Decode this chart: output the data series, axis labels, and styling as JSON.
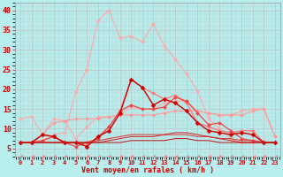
{
  "background_color": "#b8eeee",
  "grid_color": "#bbbbbb",
  "xlabel": "Vent moyen/en rafales ( km/h )",
  "xlim": [
    -0.5,
    23.5
  ],
  "ylim": [
    3,
    42
  ],
  "yticks": [
    5,
    10,
    15,
    20,
    25,
    30,
    35,
    40
  ],
  "xticks": [
    0,
    1,
    2,
    3,
    4,
    5,
    6,
    7,
    8,
    9,
    10,
    11,
    12,
    13,
    14,
    15,
    16,
    17,
    18,
    19,
    20,
    21,
    22,
    23
  ],
  "lines": [
    {
      "x": [
        0,
        1,
        2,
        3,
        4,
        5,
        6,
        7,
        8,
        9,
        10,
        11,
        12,
        13,
        14,
        15,
        16,
        17,
        18,
        19,
        20,
        21,
        22,
        23
      ],
      "y": [
        6.5,
        6.5,
        7.0,
        8.5,
        9.0,
        19.5,
        25.0,
        37.5,
        40.0,
        33.0,
        33.5,
        32.0,
        36.5,
        31.0,
        27.5,
        24.0,
        19.5,
        12.5,
        10.0,
        7.5,
        6.5,
        6.5,
        6.5,
        6.5
      ],
      "color": "#ffaaaa",
      "lw": 0.8,
      "marker": "D",
      "ms": 2.0,
      "ls": "-"
    },
    {
      "x": [
        0,
        1,
        2,
        3,
        4,
        5,
        6,
        7,
        8,
        9,
        10,
        11,
        12,
        13,
        14,
        15,
        16,
        17,
        18,
        19,
        20,
        21,
        22,
        23
      ],
      "y": [
        12.5,
        13.0,
        8.5,
        12.5,
        12.0,
        7.5,
        10.5,
        13.0,
        13.0,
        13.5,
        15.5,
        15.0,
        15.0,
        16.5,
        17.0,
        17.0,
        14.5,
        14.0,
        13.5,
        13.5,
        14.5,
        15.0,
        15.0,
        8.0
      ],
      "color": "#ffaaaa",
      "lw": 0.8,
      "marker": "D",
      "ms": 2.0,
      "ls": "-"
    },
    {
      "x": [
        0,
        1,
        2,
        3,
        4,
        5,
        6,
        7,
        8,
        9,
        10,
        11,
        12,
        13,
        14,
        15,
        16,
        17,
        18,
        19,
        20,
        21,
        22,
        23
      ],
      "y": [
        6.5,
        6.5,
        8.5,
        11.5,
        12.0,
        12.5,
        12.5,
        12.5,
        13.0,
        13.5,
        13.5,
        13.5,
        13.5,
        14.0,
        14.5,
        14.5,
        14.5,
        14.0,
        13.5,
        13.5,
        13.5,
        14.5,
        15.0,
        8.0
      ],
      "color": "#ff9999",
      "lw": 0.8,
      "marker": "D",
      "ms": 2.0,
      "ls": "-"
    },
    {
      "x": [
        0,
        1,
        2,
        3,
        4,
        5,
        6,
        7,
        8,
        9,
        10,
        11,
        12,
        13,
        14,
        15,
        16,
        17,
        18,
        19,
        20,
        21,
        22,
        23
      ],
      "y": [
        6.5,
        6.5,
        8.5,
        8.0,
        6.5,
        6.5,
        5.5,
        8.0,
        10.5,
        14.5,
        22.5,
        20.5,
        19.0,
        17.5,
        18.5,
        16.5,
        11.5,
        10.5,
        9.5,
        9.0,
        9.5,
        9.5,
        6.5,
        6.5
      ],
      "color": "#ff7777",
      "lw": 0.9,
      "marker": "D",
      "ms": 2.0,
      "ls": "-"
    },
    {
      "x": [
        0,
        1,
        2,
        3,
        4,
        5,
        6,
        7,
        8,
        9,
        10,
        11,
        12,
        13,
        14,
        15,
        16,
        17,
        18,
        19,
        20,
        21,
        22,
        23
      ],
      "y": [
        6.5,
        6.5,
        7.0,
        8.0,
        6.5,
        5.5,
        6.5,
        7.5,
        10.5,
        14.5,
        16.0,
        15.0,
        15.0,
        15.5,
        18.0,
        17.0,
        14.0,
        11.0,
        11.5,
        9.5,
        7.5,
        7.0,
        6.5,
        6.5
      ],
      "color": "#ee4444",
      "lw": 0.9,
      "marker": "D",
      "ms": 2.0,
      "ls": "-"
    },
    {
      "x": [
        0,
        1,
        2,
        3,
        4,
        5,
        6,
        7,
        8,
        9,
        10,
        11,
        12,
        13,
        14,
        15,
        16,
        17,
        18,
        19,
        20,
        21,
        22,
        23
      ],
      "y": [
        6.5,
        6.5,
        8.5,
        8.0,
        6.5,
        6.5,
        5.5,
        8.0,
        9.5,
        14.0,
        22.5,
        20.5,
        16.0,
        17.5,
        16.5,
        14.5,
        11.5,
        9.5,
        9.0,
        8.5,
        9.0,
        8.5,
        6.5,
        6.5
      ],
      "color": "#cc0000",
      "lw": 1.0,
      "marker": "D",
      "ms": 2.5,
      "ls": "-"
    },
    {
      "x": [
        0,
        1,
        2,
        3,
        4,
        5,
        6,
        7,
        8,
        9,
        10,
        11,
        12,
        13,
        14,
        15,
        16,
        17,
        18,
        19,
        20,
        21,
        22,
        23
      ],
      "y": [
        6.5,
        6.5,
        6.5,
        6.5,
        6.5,
        6.5,
        6.5,
        7.0,
        7.5,
        8.0,
        8.5,
        8.5,
        8.5,
        8.5,
        8.5,
        8.5,
        8.0,
        8.0,
        7.5,
        7.5,
        7.0,
        7.0,
        6.5,
        6.5
      ],
      "color": "#dd3333",
      "lw": 0.7,
      "marker": null,
      "ms": 0,
      "ls": "-"
    },
    {
      "x": [
        0,
        1,
        2,
        3,
        4,
        5,
        6,
        7,
        8,
        9,
        10,
        11,
        12,
        13,
        14,
        15,
        16,
        17,
        18,
        19,
        20,
        21,
        22,
        23
      ],
      "y": [
        6.5,
        6.5,
        6.5,
        6.5,
        6.5,
        6.5,
        6.5,
        6.5,
        7.0,
        7.5,
        8.0,
        8.0,
        8.0,
        8.5,
        9.0,
        9.0,
        8.5,
        8.0,
        7.5,
        7.0,
        6.5,
        6.5,
        6.5,
        6.5
      ],
      "color": "#cc2222",
      "lw": 0.7,
      "marker": null,
      "ms": 0,
      "ls": "-"
    },
    {
      "x": [
        0,
        1,
        2,
        3,
        4,
        5,
        6,
        7,
        8,
        9,
        10,
        11,
        12,
        13,
        14,
        15,
        16,
        17,
        18,
        19,
        20,
        21,
        22,
        23
      ],
      "y": [
        6.5,
        6.5,
        6.5,
        6.5,
        6.5,
        6.5,
        6.5,
        6.5,
        6.5,
        6.5,
        7.0,
        7.0,
        7.0,
        7.0,
        7.5,
        7.5,
        7.0,
        7.0,
        6.5,
        6.5,
        6.5,
        6.5,
        6.5,
        6.5
      ],
      "color": "#bb1111",
      "lw": 0.7,
      "marker": null,
      "ms": 0,
      "ls": "-"
    },
    {
      "x": [
        0,
        1,
        2,
        3,
        4,
        5,
        6,
        7,
        8,
        9,
        10,
        11,
        12,
        13,
        14,
        15,
        16,
        17,
        18,
        19,
        20,
        21,
        22,
        23
      ],
      "y": [
        3,
        3,
        3,
        3,
        3,
        3,
        3,
        3,
        3,
        3,
        3,
        3,
        3,
        3,
        3,
        3,
        3,
        3,
        3,
        3,
        3,
        3,
        3,
        3
      ],
      "color": "#ff8888",
      "lw": 0.7,
      "marker": 4,
      "ms": 3.0,
      "ls": "--"
    }
  ],
  "tick_color": "#cc0000",
  "label_color": "#cc0000",
  "tick_fontsize": 5,
  "xlabel_fontsize": 6
}
